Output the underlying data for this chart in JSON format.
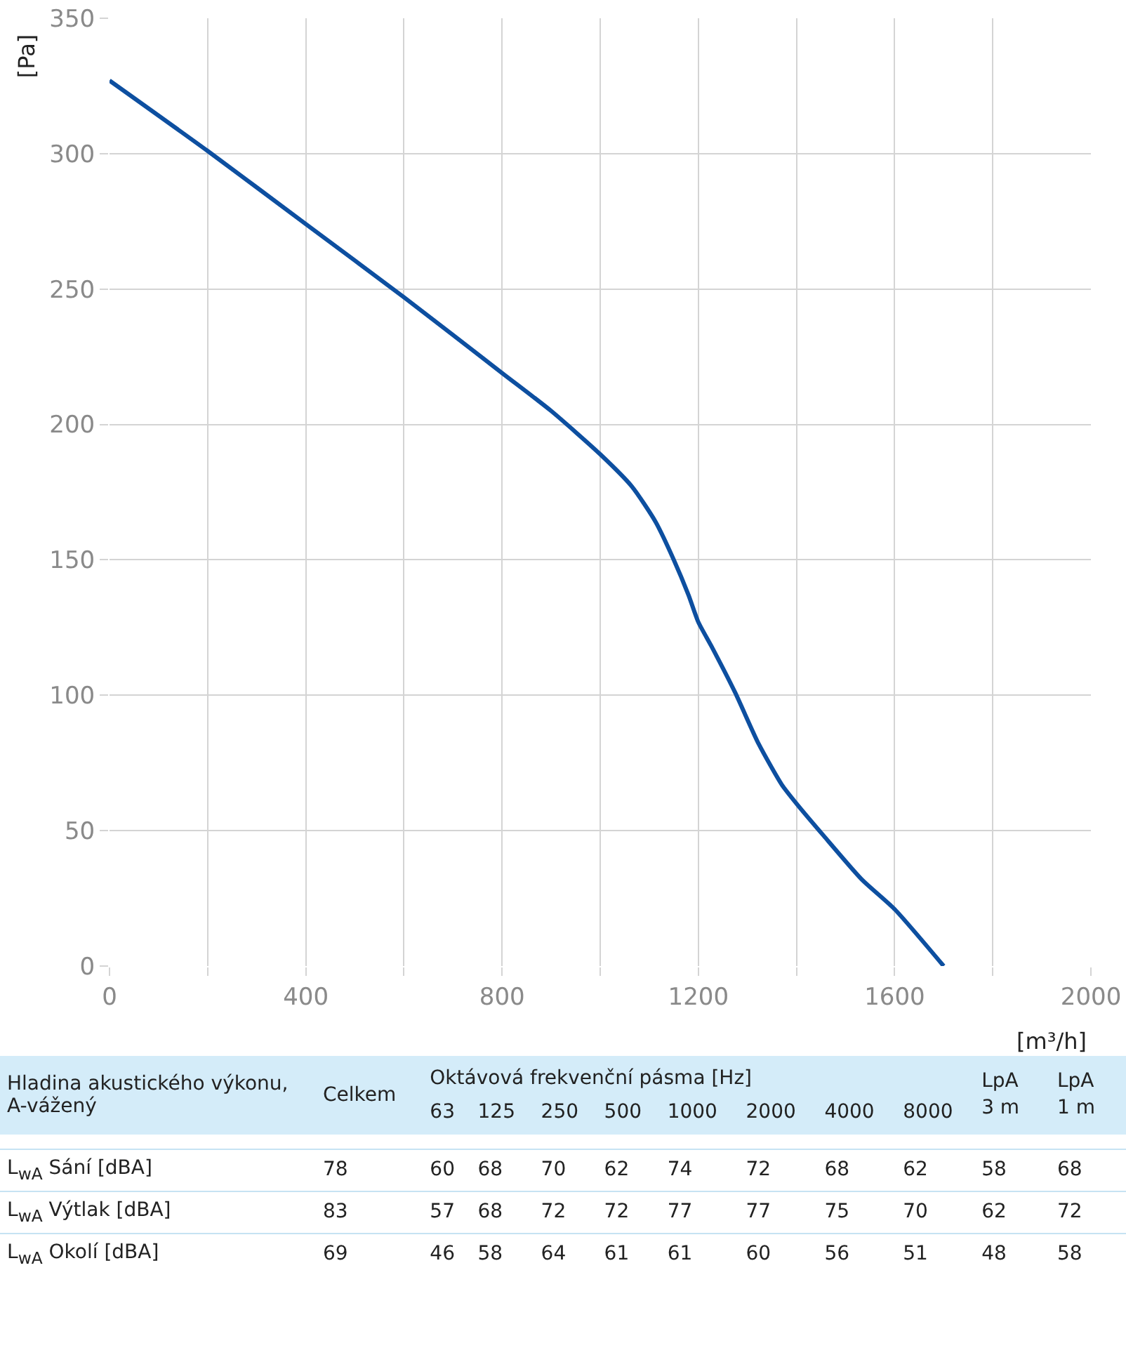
{
  "chart_data": [
    {
      "type": "line",
      "xlabel": "[m³/h]",
      "ylabel": "[Pa]",
      "x": [
        0,
        200,
        400,
        600,
        800,
        900,
        1000,
        1065,
        1113,
        1150,
        1180,
        1200,
        1227,
        1275,
        1323,
        1370,
        1400,
        1456,
        1533,
        1600,
        1700
      ],
      "series": [
        {
          "color": "#0d4fa0",
          "values": [
            327,
            301,
            274,
            247,
            219,
            205,
            189,
            177,
            164,
            150,
            137,
            127,
            118,
            101,
            82,
            67,
            60,
            48,
            32,
            21,
            0
          ]
        }
      ],
      "xlim": [
        0,
        2000
      ],
      "ylim": [
        0,
        350
      ],
      "xticks": [
        0,
        {
          "value": 200,
          "label": null
        },
        400,
        {
          "value": 600,
          "label": null
        },
        800,
        {
          "value": 1000,
          "label": null
        },
        1200,
        {
          "value": 1400,
          "label": null
        },
        1600,
        {
          "value": 1800,
          "label": null
        },
        2000
      ],
      "yticks": [
        0,
        50,
        100,
        150,
        200,
        250,
        300,
        350
      ],
      "grid": true,
      "marker": "none",
      "line_style": "solid"
    },
    {
      "type": "other",
      "annotations": [
        "Hladina akustického výkonu, A-vážený",
        "Oktávová frekvenční pásma [Hz]"
      ],
      "categories": [
        "Celkem",
        "63",
        "125",
        "250",
        "500",
        "1000",
        "2000",
        "4000",
        "8000",
        "LpA 3 m",
        "LpA 1 m"
      ],
      "y_categories": [
        "L$_{wA}$ Sání [dBA]",
        "L$_{wA}$ Výtlak [dBA]",
        "L$_{wA}$ Okolí [dBA]"
      ],
      "cell_labels": [
        [
          "78",
          "60",
          "68",
          "70",
          "62",
          "74",
          "72",
          "68",
          "62",
          "58",
          "68"
        ],
        [
          "83",
          "57",
          "68",
          "72",
          "72",
          "77",
          "77",
          "75",
          "70",
          "62",
          "72"
        ],
        [
          "69",
          "46",
          "58",
          "64",
          "61",
          "61",
          "60",
          "56",
          "51",
          "48",
          "58"
        ]
      ]
    }
  ]
}
